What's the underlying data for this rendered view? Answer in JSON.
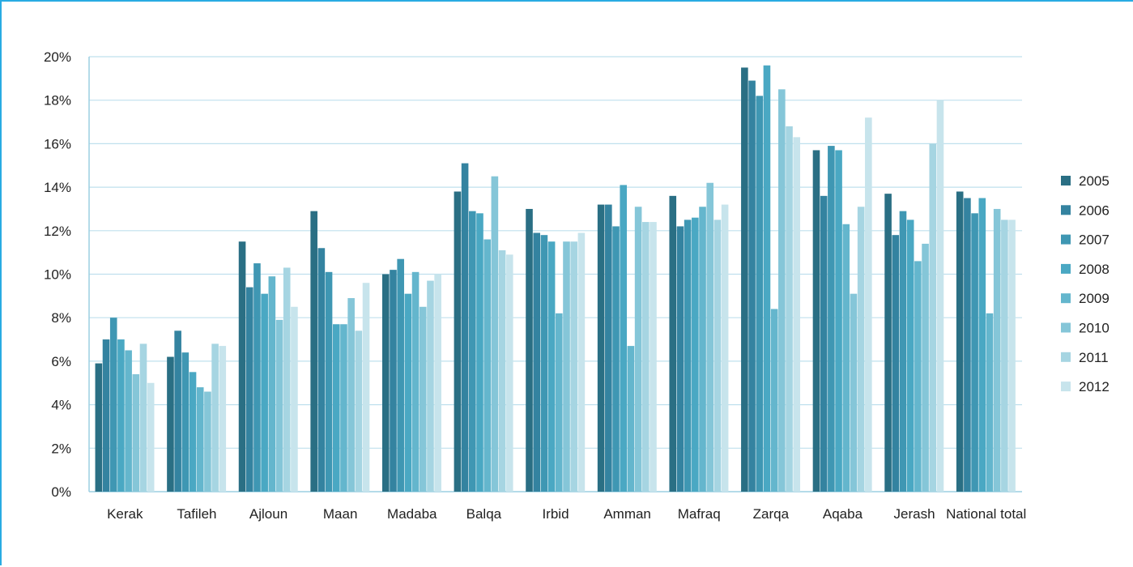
{
  "chart_data": {
    "type": "bar",
    "title": "",
    "xlabel": "",
    "ylabel": "",
    "ylim": [
      0,
      20
    ],
    "y_ticks": [
      "0%",
      "2%",
      "4%",
      "6%",
      "8%",
      "10%",
      "12%",
      "14%",
      "16%",
      "18%",
      "20%"
    ],
    "grid": true,
    "legend_position": "right",
    "categories": [
      "Kerak",
      "Tafileh",
      "Ajloun",
      "Maan",
      "Madaba",
      "Balqa",
      "Irbid",
      "Amman",
      "Mafraq",
      "Zarqa",
      "Aqaba",
      "Jerash",
      "National total"
    ],
    "series": [
      {
        "name": "2005",
        "color": "#2a6f84",
        "values": [
          5.9,
          6.2,
          11.5,
          12.9,
          10.0,
          13.8,
          13.0,
          13.2,
          13.6,
          19.5,
          15.7,
          13.7,
          13.8
        ]
      },
      {
        "name": "2006",
        "color": "#3483a0",
        "values": [
          7.0,
          7.4,
          9.4,
          11.2,
          10.2,
          15.1,
          11.9,
          13.2,
          12.2,
          18.9,
          13.6,
          11.8,
          13.5
        ]
      },
      {
        "name": "2007",
        "color": "#3f97b3",
        "values": [
          8.0,
          6.4,
          10.5,
          10.1,
          10.7,
          12.9,
          11.8,
          12.2,
          12.5,
          18.2,
          15.9,
          12.9,
          12.8
        ]
      },
      {
        "name": "2008",
        "color": "#4aa8c3",
        "values": [
          7.0,
          5.5,
          9.1,
          7.7,
          9.1,
          12.8,
          11.5,
          14.1,
          12.6,
          19.6,
          15.7,
          12.5,
          13.5
        ]
      },
      {
        "name": "2009",
        "color": "#64b6cd",
        "values": [
          6.5,
          4.8,
          9.9,
          7.7,
          10.1,
          11.6,
          8.2,
          6.7,
          13.1,
          8.4,
          12.3,
          10.6,
          8.2
        ]
      },
      {
        "name": "2010",
        "color": "#85c6d8",
        "values": [
          5.4,
          4.6,
          7.9,
          8.9,
          8.5,
          14.5,
          11.5,
          13.1,
          14.2,
          18.5,
          9.1,
          11.4,
          13.0
        ]
      },
      {
        "name": "2011",
        "color": "#a6d5e2",
        "values": [
          6.8,
          6.8,
          10.3,
          7.4,
          9.7,
          11.1,
          11.5,
          12.4,
          12.5,
          16.8,
          13.1,
          16.0,
          12.5
        ]
      },
      {
        "name": "2012",
        "color": "#c7e4ec",
        "values": [
          5.0,
          6.7,
          8.5,
          9.6,
          10.0,
          10.9,
          11.9,
          12.4,
          13.2,
          16.3,
          17.2,
          18.0,
          12.5
        ]
      }
    ]
  }
}
